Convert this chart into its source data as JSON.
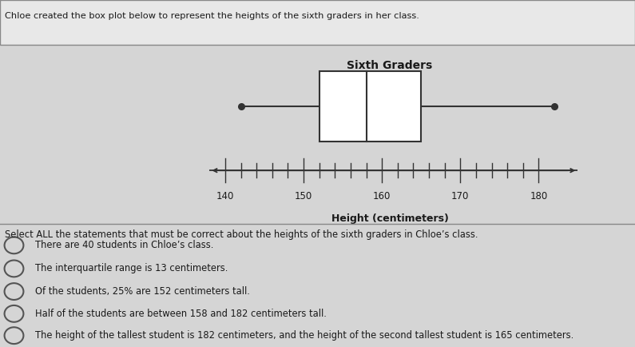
{
  "title_top": "Chloe created the box plot below to represent the heights of the sixth graders in her class.",
  "box_title": "Sixth Graders",
  "xlabel": "Height (centimeters)",
  "min_val": 142,
  "q1": 152,
  "median": 158,
  "q3": 165,
  "max_val": 182,
  "axis_min": 138,
  "axis_max": 185,
  "axis_ticks": [
    140,
    150,
    160,
    170,
    180
  ],
  "tick_interval": 2,
  "select_text": "Select ALL the statements that must be correct about the heights of the sixth graders in Chloe’s class.",
  "statements": [
    "There are 40 students in Chloe’s class.",
    "The interquartile range is 13 centimeters.",
    "Of the students, 25% are 152 centimeters tall.",
    "Half of the students are between 158 and 182 centimeters tall.",
    "The height of the tallest student is 182 centimeters, and the height of the second tallest student is 165 centimeters."
  ],
  "bg_color": "#d5d5d5",
  "top_bg": "#e8e8e8",
  "box_color": "#cccccc",
  "box_edge_color": "#333333",
  "line_color": "#333333",
  "text_color": "#1a1a1a",
  "border_color": "#888888"
}
